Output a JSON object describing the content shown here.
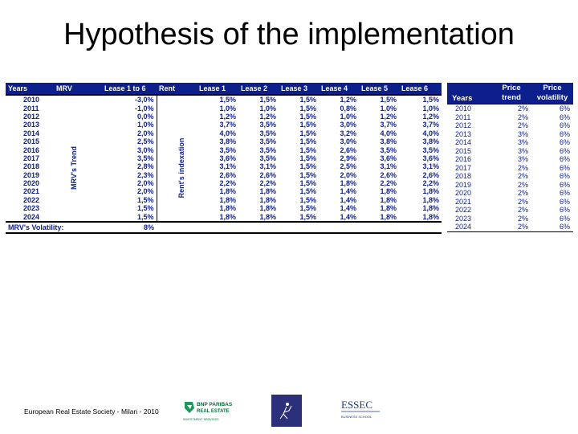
{
  "title": "Hypothesis of the implementation",
  "left_table": {
    "headers": [
      "Years",
      "MRV",
      "Lease 1 to 6",
      "Rent",
      "Lease 1",
      "Lease 2",
      "Lease 3",
      "Lease 4",
      "Lease 5",
      "Lease 6"
    ],
    "mrv_trend_label": "MRV's Trend",
    "rent_indexation_label": "Rent's indexation",
    "rows": [
      [
        "2010",
        "-3,0%",
        "1,5%",
        "1,5%",
        "1,5%",
        "1,2%",
        "1,5%",
        "1,5%"
      ],
      [
        "2011",
        "-1,0%",
        "1,0%",
        "1,0%",
        "1,5%",
        "0,8%",
        "1,0%",
        "1,0%"
      ],
      [
        "2012",
        "0,0%",
        "1,2%",
        "1,2%",
        "1,5%",
        "1,0%",
        "1,2%",
        "1,2%"
      ],
      [
        "2013",
        "1,0%",
        "3,7%",
        "3,5%",
        "1,5%",
        "3,0%",
        "3,7%",
        "3,7%"
      ],
      [
        "2014",
        "2,0%",
        "4,0%",
        "3,5%",
        "1,5%",
        "3,2%",
        "4,0%",
        "4,0%"
      ],
      [
        "2015",
        "2,5%",
        "3,8%",
        "3,5%",
        "1,5%",
        "3,0%",
        "3,8%",
        "3,8%"
      ],
      [
        "2016",
        "3,0%",
        "3,5%",
        "3,5%",
        "1,5%",
        "2,6%",
        "3,5%",
        "3,5%"
      ],
      [
        "2017",
        "3,5%",
        "3,6%",
        "3,5%",
        "1,5%",
        "2,9%",
        "3,6%",
        "3,6%"
      ],
      [
        "2018",
        "2,8%",
        "3,1%",
        "3,1%",
        "1,5%",
        "2,5%",
        "3,1%",
        "3,1%"
      ],
      [
        "2019",
        "2,3%",
        "2,6%",
        "2,6%",
        "1,5%",
        "2,0%",
        "2,6%",
        "2,6%"
      ],
      [
        "2020",
        "2,0%",
        "2,2%",
        "2,2%",
        "1,5%",
        "1,8%",
        "2,2%",
        "2,2%"
      ],
      [
        "2021",
        "2,0%",
        "1,8%",
        "1,8%",
        "1,5%",
        "1,4%",
        "1,8%",
        "1,8%"
      ],
      [
        "2022",
        "1,5%",
        "1,8%",
        "1,8%",
        "1,5%",
        "1,4%",
        "1,8%",
        "1,8%"
      ],
      [
        "2023",
        "1,5%",
        "1,8%",
        "1,8%",
        "1,5%",
        "1,4%",
        "1,8%",
        "1,8%"
      ],
      [
        "2024",
        "1,5%",
        "1,8%",
        "1,8%",
        "1,5%",
        "1,4%",
        "1,8%",
        "1,8%"
      ]
    ],
    "volatility_label": "MRV's Volatility:",
    "volatility_value": "8%"
  },
  "right_table": {
    "headers": [
      "Years",
      "Price trend",
      "Price volatility"
    ],
    "rows": [
      [
        "2010",
        "2%",
        "6%"
      ],
      [
        "2011",
        "2%",
        "6%"
      ],
      [
        "2012",
        "2%",
        "6%"
      ],
      [
        "2013",
        "3%",
        "6%"
      ],
      [
        "2014",
        "3%",
        "6%"
      ],
      [
        "2015",
        "3%",
        "6%"
      ],
      [
        "2016",
        "3%",
        "6%"
      ],
      [
        "2017",
        "2%",
        "6%"
      ],
      [
        "2018",
        "2%",
        "6%"
      ],
      [
        "2019",
        "2%",
        "6%"
      ],
      [
        "2020",
        "2%",
        "6%"
      ],
      [
        "2021",
        "2%",
        "6%"
      ],
      [
        "2022",
        "2%",
        "6%"
      ],
      [
        "2023",
        "2%",
        "6%"
      ],
      [
        "2024",
        "2%",
        "6%"
      ]
    ]
  },
  "footer": {
    "text": "European Real Estate Society - Milan - 2010",
    "logo_bnp_1": "BNP PARIBAS",
    "logo_bnp_2": "REAL ESTATE",
    "logo_bnp_3": "INVESTMENT SERVICES",
    "logo_essec": "ESSEC",
    "logo_essec_sub": "BUSINESS SCHOOL"
  },
  "colors": {
    "header_bg": "#0d1f8a",
    "text_blue": "#0d1f8a"
  }
}
